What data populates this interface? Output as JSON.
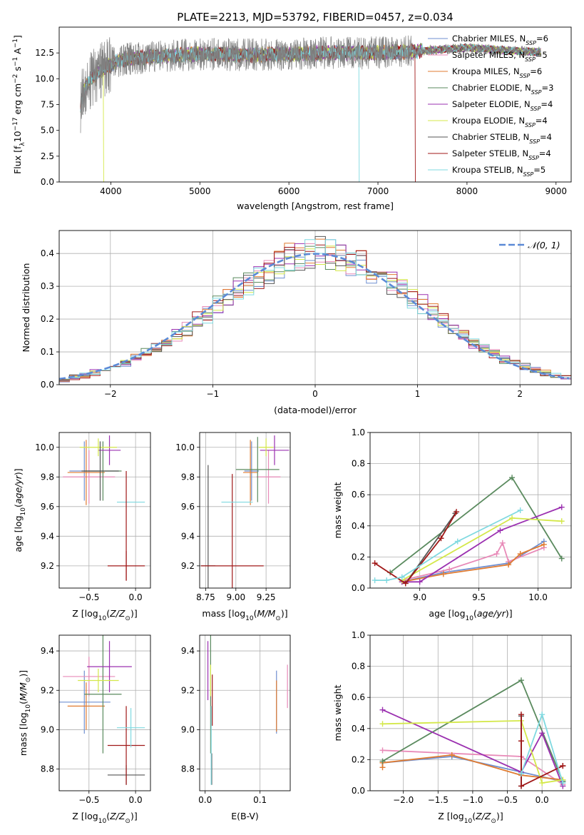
{
  "figure": {
    "title": "PLATE=2213, MJD=53792, FIBERID=0457, z=0.034"
  },
  "colors": {
    "Chabrier MILES": "#6f8fd0",
    "Salpeter MILES": "#e88ab8",
    "Kroupa MILES": "#e07b30",
    "Chabrier ELODIE": "#5a8a5e",
    "Salpeter ELODIE": "#9b30b0",
    "Kroupa ELODIE": "#d4e84a",
    "Chabrier STELIB": "#555555",
    "Salpeter STELIB": "#a01818",
    "Kroupa STELIB": "#7fd9e0",
    "normal": "#5b8ad6"
  },
  "chart_data": [
    {
      "id": "spectrum",
      "type": "line",
      "xlabel": "wavelength [Angstrom, rest frame]",
      "ylabel": "Flux [f",
      "ylabel_parts": [
        "λ",
        "10",
        "−17",
        " erg cm",
        "−2",
        " s",
        "−1",
        " A",
        "−1",
        "]"
      ],
      "xlim": [
        3420,
        9170
      ],
      "ylim": [
        0,
        15
      ],
      "xticks": [
        4000,
        5000,
        6000,
        7000,
        8000,
        9000
      ],
      "yticks": [
        0.0,
        2.5,
        5.0,
        7.5,
        10.0,
        12.5
      ],
      "ytick_labels": [
        "0.0",
        "2.5",
        "5.0",
        "7.5",
        "10.0",
        "12.5"
      ],
      "data_range": [
        3660,
        8830
      ],
      "legend_position": "top-right",
      "legend": [
        {
          "label": "Chabrier MILES, N",
          "sub": "SSP",
          "suffix": "=6"
        },
        {
          "label": "Salpeter MILES, N",
          "sub": "SSP",
          "suffix": "=5"
        },
        {
          "label": "Kroupa MILES, N",
          "sub": "SSP",
          "suffix": "=6"
        },
        {
          "label": "Chabrier ELODIE, N",
          "sub": "SSP",
          "suffix": "=3"
        },
        {
          "label": "Salpeter ELODIE, N",
          "sub": "SSP",
          "suffix": "=4"
        },
        {
          "label": "Kroupa ELODIE, N",
          "sub": "SSP",
          "suffix": "=4"
        },
        {
          "label": "Chabrier STELIB, N",
          "sub": "SSP",
          "suffix": "=4"
        },
        {
          "label": "Salpeter STELIB, N",
          "sub": "SSP",
          "suffix": "=4"
        },
        {
          "label": "Kroupa STELIB, N",
          "sub": "SSP",
          "suffix": "=5"
        }
      ],
      "continuum": [
        [
          3660,
          7.5
        ],
        [
          3700,
          9.0
        ],
        [
          3800,
          10.2
        ],
        [
          3900,
          10.8
        ],
        [
          4000,
          11.4
        ],
        [
          4100,
          11.8
        ],
        [
          4300,
          12.0
        ],
        [
          4600,
          12.2
        ],
        [
          5000,
          12.4
        ],
        [
          5500,
          12.3
        ],
        [
          6000,
          12.4
        ],
        [
          6500,
          12.5
        ],
        [
          7000,
          12.5
        ],
        [
          7500,
          12.7
        ],
        [
          8000,
          13.0
        ],
        [
          8500,
          12.7
        ],
        [
          8830,
          12.6
        ]
      ],
      "features": [
        {
          "name": "dropout-stelib-kroupa",
          "x": 6790,
          "y_bottom": 0,
          "series": "Kroupa STELIB"
        },
        {
          "name": "dropout-stelib-salpeter",
          "x": 7420,
          "y_bottom": 0,
          "series": "Salpeter STELIB"
        },
        {
          "name": "dropout-elodie",
          "x": 3920,
          "y_bottom": 0,
          "series": "Kroupa ELODIE"
        }
      ]
    },
    {
      "id": "residuals",
      "type": "histogram",
      "xlabel": "(data-model)/error",
      "ylabel": "Normed distribution",
      "xlim": [
        -2.5,
        2.5
      ],
      "ylim": [
        0,
        0.47
      ],
      "xticks": [
        -2,
        -1,
        0,
        1,
        2
      ],
      "xtick_labels": [
        "−2",
        "−1",
        "0",
        "1",
        "2"
      ],
      "yticks": [
        0.0,
        0.1,
        0.2,
        0.3,
        0.4
      ],
      "ytick_labels": [
        "0.0",
        "0.1",
        "0.2",
        "0.3",
        "0.4"
      ],
      "bin_width": 0.1,
      "grid": true,
      "legend": [
        {
          "label": "𝒩(0, 1)",
          "style": "dashed"
        }
      ],
      "legend_position": "top-right"
    },
    {
      "id": "age-vs-Z",
      "type": "errorbar",
      "xlabel": "Z [log",
      "xlabel_parts": [
        "10",
        "(",
        "Z/Z",
        "⊙",
        ")]"
      ],
      "ylabel": "age  [log",
      "ylabel_parts": [
        "10",
        "(",
        "age/yr",
        ")]"
      ],
      "xlim": [
        -0.82,
        0.16
      ],
      "ylim": [
        9.05,
        10.1
      ],
      "xticks": [
        -0.5,
        0.0
      ],
      "xtick_labels": [
        "−0.5",
        "0.0"
      ],
      "yticks": [
        9.2,
        9.4,
        9.6,
        9.8,
        10.0
      ],
      "ytick_labels": [
        "9.2",
        "9.4",
        "9.6",
        "9.8",
        "10.0"
      ],
      "grid": true,
      "points": [
        {
          "series": "Chabrier MILES",
          "x": -0.55,
          "y": 9.84,
          "xerr": 0.16,
          "yerr": 0.2
        },
        {
          "series": "Salpeter MILES",
          "x": -0.5,
          "y": 9.8,
          "xerr": 0.28,
          "yerr": 0.18
        },
        {
          "series": "Kroupa MILES",
          "x": -0.53,
          "y": 9.83,
          "xerr": 0.2,
          "yerr": 0.22
        },
        {
          "series": "Chabrier ELODIE",
          "x": -0.35,
          "y": 9.84,
          "xerr": 0.2,
          "yerr": 0.2
        },
        {
          "series": "Salpeter ELODIE",
          "x": -0.28,
          "y": 9.98,
          "xerr": 0.12,
          "yerr": 0.1
        },
        {
          "series": "Kroupa ELODIE",
          "x": -0.4,
          "y": 10.0,
          "xerr": 0.2,
          "yerr": 0.06
        },
        {
          "series": "Chabrier STELIB",
          "x": -0.38,
          "y": 9.84,
          "xerr": 0.2,
          "yerr": 0.2
        },
        {
          "series": "Salpeter STELIB",
          "x": -0.1,
          "y": 9.2,
          "xerr": 0.2,
          "yerr": 0.1
        },
        {
          "series": "Kroupa STELIB",
          "x": -0.05,
          "y": 9.63,
          "xerr": 0.15,
          "yerr": 0.0
        }
      ],
      "extra_vlines": [
        {
          "series": "Salpeter STELIB",
          "x": -0.1,
          "y0": 9.1,
          "y1": 9.84
        }
      ]
    },
    {
      "id": "age-vs-mass",
      "type": "errorbar",
      "xlabel": "mass [log",
      "xlabel_parts": [
        "10",
        "(",
        "M/M",
        "⊙",
        ")]"
      ],
      "xlim": [
        8.7,
        9.45
      ],
      "ylim": [
        9.05,
        10.1
      ],
      "xticks": [
        8.75,
        9.0,
        9.25
      ],
      "xtick_labels": [
        "8.75",
        "9.00",
        "9.25"
      ],
      "yticks": [
        9.2,
        9.4,
        9.6,
        9.8,
        10.0
      ],
      "ytick_labels": [
        "9.2",
        "9.4",
        "9.6",
        "9.8",
        "10.0"
      ],
      "grid": true,
      "points": [
        {
          "series": "Chabrier MILES",
          "x": 9.13,
          "y": 9.84,
          "xerr": 0.06,
          "yerr": 0.2
        },
        {
          "series": "Salpeter MILES",
          "x": 9.27,
          "y": 9.8,
          "xerr": 0.1,
          "yerr": 0.18
        },
        {
          "series": "Kroupa MILES",
          "x": 9.12,
          "y": 9.83,
          "xerr": 0.06,
          "yerr": 0.22
        },
        {
          "series": "Chabrier ELODIE",
          "x": 9.18,
          "y": 9.85,
          "xerr": 0.18,
          "yerr": 0.22
        },
        {
          "series": "Salpeter ELODIE",
          "x": 9.32,
          "y": 9.98,
          "xerr": 0.12,
          "yerr": 0.1
        },
        {
          "series": "Kroupa ELODIE",
          "x": 9.25,
          "y": 10.0,
          "xerr": 0.06,
          "yerr": 0.06
        },
        {
          "series": "Chabrier STELIB",
          "x": 8.77,
          "y": 9.2,
          "xerr": 0.06,
          "yerr": 0.68
        },
        {
          "series": "Salpeter STELIB",
          "x": 8.97,
          "y": 9.2,
          "xerr": 0.26,
          "yerr": 0.62
        },
        {
          "series": "Kroupa STELIB",
          "x": 9.01,
          "y": 9.63,
          "xerr": 0.13,
          "yerr": 0.0
        }
      ]
    },
    {
      "id": "weight-vs-age",
      "type": "line",
      "xlabel": "age  [log",
      "xlabel_parts": [
        "10",
        "(",
        "age/yr",
        ")]"
      ],
      "ylabel": "mass weight",
      "xlim": [
        8.58,
        10.28
      ],
      "ylim": [
        0,
        1.0
      ],
      "xticks": [
        9.0,
        9.5,
        10.0
      ],
      "xtick_labels": [
        "9.0",
        "9.5",
        "10.0"
      ],
      "yticks": [
        0.0,
        0.2,
        0.4,
        0.6,
        0.8,
        1.0
      ],
      "ytick_labels": [
        "0.0",
        "0.2",
        "0.4",
        "0.6",
        "0.8",
        "1.0"
      ],
      "grid": true,
      "series": [
        {
          "name": "Chabrier MILES",
          "x": [
            8.85,
            9.2,
            9.75,
            10.05
          ],
          "y": [
            0.04,
            0.1,
            0.16,
            0.3
          ]
        },
        {
          "name": "Salpeter MILES",
          "x": [
            8.85,
            9.25,
            9.65,
            9.7,
            9.75,
            10.05
          ],
          "y": [
            0.05,
            0.12,
            0.22,
            0.29,
            0.17,
            0.26
          ]
        },
        {
          "name": "Kroupa MILES",
          "x": [
            8.85,
            9.2,
            9.75,
            9.85,
            10.05
          ],
          "y": [
            0.04,
            0.09,
            0.15,
            0.22,
            0.28
          ]
        },
        {
          "name": "Chabrier ELODIE",
          "x": [
            8.75,
            9.78,
            10.2
          ],
          "y": [
            0.1,
            0.71,
            0.19
          ]
        },
        {
          "name": "Salpeter ELODIE",
          "x": [
            8.85,
            9.0,
            9.68,
            10.2
          ],
          "y": [
            0.04,
            0.04,
            0.37,
            0.52
          ]
        },
        {
          "name": "Kroupa ELODIE",
          "x": [
            8.85,
            9.78,
            10.2
          ],
          "y": [
            0.05,
            0.45,
            0.43
          ]
        },
        {
          "name": "Chabrier STELIB",
          "x": [
            8.88,
            9.3
          ],
          "y": [
            0.03,
            0.48
          ]
        },
        {
          "name": "Salpeter STELIB",
          "x": [
            8.62,
            8.88,
            9.18,
            9.31
          ],
          "y": [
            0.16,
            0.03,
            0.32,
            0.49
          ]
        },
        {
          "name": "Kroupa STELIB",
          "x": [
            8.62,
            8.72,
            8.85,
            9.32,
            9.85
          ],
          "y": [
            0.05,
            0.05,
            0.07,
            0.3,
            0.5
          ]
        }
      ]
    },
    {
      "id": "mass-vs-Z",
      "type": "errorbar",
      "xlabel": "Z [log",
      "xlabel_parts": [
        "10",
        "(",
        "Z/Z",
        "⊙",
        ")]"
      ],
      "ylabel": "mass [log",
      "ylabel_parts": [
        "10",
        "(",
        "M/M",
        "⊙",
        ")]"
      ],
      "xlim": [
        -0.82,
        0.16
      ],
      "ylim": [
        8.69,
        9.48
      ],
      "xticks": [
        -0.5,
        0.0
      ],
      "xtick_labels": [
        "−0.5",
        "0.0"
      ],
      "yticks": [
        8.8,
        9.0,
        9.2,
        9.4
      ],
      "ytick_labels": [
        "8.8",
        "9.0",
        "9.2",
        "9.4"
      ],
      "grid": true,
      "points": [
        {
          "series": "Chabrier MILES",
          "x": -0.55,
          "y": 9.14,
          "xerr": 0.28,
          "yerr": 0.16
        },
        {
          "series": "Salpeter MILES",
          "x": -0.5,
          "y": 9.27,
          "xerr": 0.28,
          "yerr": 0.1
        },
        {
          "series": "Kroupa MILES",
          "x": -0.53,
          "y": 9.12,
          "xerr": 0.2,
          "yerr": 0.12
        },
        {
          "series": "Chabrier ELODIE",
          "x": -0.35,
          "y": 9.18,
          "xerr": 0.2,
          "yerr": 0.3
        },
        {
          "series": "Salpeter ELODIE",
          "x": -0.28,
          "y": 9.32,
          "xerr": 0.24,
          "yerr": 0.13
        },
        {
          "series": "Kroupa ELODIE",
          "x": -0.4,
          "y": 9.25,
          "xerr": 0.22,
          "yerr": 0.06
        },
        {
          "series": "Chabrier STELIB",
          "x": -0.1,
          "y": 8.77,
          "xerr": 0.2,
          "yerr": 0.05
        },
        {
          "series": "Salpeter STELIB",
          "x": -0.1,
          "y": 8.92,
          "xerr": 0.2,
          "yerr": 0.2
        },
        {
          "series": "Kroupa STELIB",
          "x": -0.05,
          "y": 9.01,
          "xerr": 0.15,
          "yerr": 0.1
        }
      ]
    },
    {
      "id": "mass-vs-ebv",
      "type": "errorbar",
      "xlabel": "E(B-V)",
      "xlim": [
        -0.01,
        0.155
      ],
      "ylim": [
        8.69,
        9.48
      ],
      "xticks": [
        0.0,
        0.1
      ],
      "xtick_labels": [
        "0.0",
        "0.1"
      ],
      "yticks": [
        8.8,
        9.0,
        9.2,
        9.4
      ],
      "ytick_labels": [
        "8.8",
        "9.0",
        "9.2",
        "9.4"
      ],
      "grid": true,
      "points": [
        {
          "series": "Chabrier MILES",
          "x": 0.13,
          "y": 9.14,
          "yerr": 0.16
        },
        {
          "series": "Salpeter MILES",
          "x": 0.15,
          "y": 9.22,
          "yerr": 0.11
        },
        {
          "series": "Kroupa MILES",
          "x": 0.13,
          "y": 9.12,
          "yerr": 0.13
        },
        {
          "series": "Chabrier ELODIE",
          "x": 0.01,
          "y": 9.18,
          "yerr": 0.3
        },
        {
          "series": "Salpeter ELODIE",
          "x": 0.005,
          "y": 9.3,
          "yerr": 0.15
        },
        {
          "series": "Kroupa ELODIE",
          "x": 0.01,
          "y": 9.25,
          "yerr": 0.08
        },
        {
          "series": "Chabrier STELIB",
          "x": 0.012,
          "y": 8.8,
          "yerr": 0.08
        },
        {
          "series": "Salpeter STELIB",
          "x": 0.013,
          "y": 9.15,
          "yerr": 0.13
        },
        {
          "series": "Kroupa STELIB",
          "x": 0.011,
          "y": 8.92,
          "yerr": 0.2
        }
      ]
    },
    {
      "id": "weight-vs-Z",
      "type": "line",
      "xlabel": "Z [log",
      "xlabel_parts": [
        "10",
        "(",
        "Z/Z",
        "⊙",
        ")]"
      ],
      "ylabel": "mass weight",
      "xlim": [
        -2.48,
        0.42
      ],
      "ylim": [
        0,
        1.0
      ],
      "xticks": [
        -2.0,
        -1.5,
        -1.0,
        -0.5,
        0.0
      ],
      "xtick_labels": [
        "−2.0",
        "−1.5",
        "−1.0",
        "−0.5",
        "0.0"
      ],
      "yticks": [
        0.0,
        0.2,
        0.4,
        0.6,
        0.8,
        1.0
      ],
      "ytick_labels": [
        "0.0",
        "0.2",
        "0.4",
        "0.6",
        "0.8",
        "1.0"
      ],
      "grid": true,
      "series": [
        {
          "name": "Chabrier MILES",
          "x": [
            -2.3,
            -1.3,
            -0.3,
            0.3
          ],
          "y": [
            0.18,
            0.22,
            0.12,
            0.06
          ]
        },
        {
          "name": "Salpeter MILES",
          "x": [
            -2.3,
            -0.3,
            0.3
          ],
          "y": [
            0.26,
            0.22,
            0.04
          ]
        },
        {
          "name": "Kroupa MILES",
          "x": [
            -2.3,
            -2.3,
            -1.3,
            -0.3,
            0.3
          ],
          "y": [
            0.15,
            0.18,
            0.23,
            0.1,
            0.07
          ]
        },
        {
          "name": "Chabrier ELODIE",
          "x": [
            -2.3,
            -0.3,
            0.3
          ],
          "y": [
            0.19,
            0.71,
            0.06
          ]
        },
        {
          "name": "Salpeter ELODIE",
          "x": [
            -2.3,
            -0.3,
            0.0,
            0.3
          ],
          "y": [
            0.52,
            0.12,
            0.37,
            0.03
          ]
        },
        {
          "name": "Kroupa ELODIE",
          "x": [
            -2.3,
            -0.3,
            0.0,
            0.3
          ],
          "y": [
            0.43,
            0.45,
            0.05,
            0.07
          ]
        },
        {
          "name": "Chabrier STELIB",
          "x": [
            -0.3,
            -0.3
          ],
          "y": [
            0.03,
            0.48
          ]
        },
        {
          "name": "Salpeter STELIB",
          "x": [
            -0.3,
            -0.3,
            -0.3,
            0.3,
            0.3
          ],
          "y": [
            0.49,
            0.32,
            0.03,
            0.16,
            0.16
          ]
        },
        {
          "name": "Kroupa STELIB",
          "x": [
            -0.3,
            0.0,
            0.3
          ],
          "y": [
            0.11,
            0.49,
            0.05
          ]
        }
      ]
    }
  ]
}
